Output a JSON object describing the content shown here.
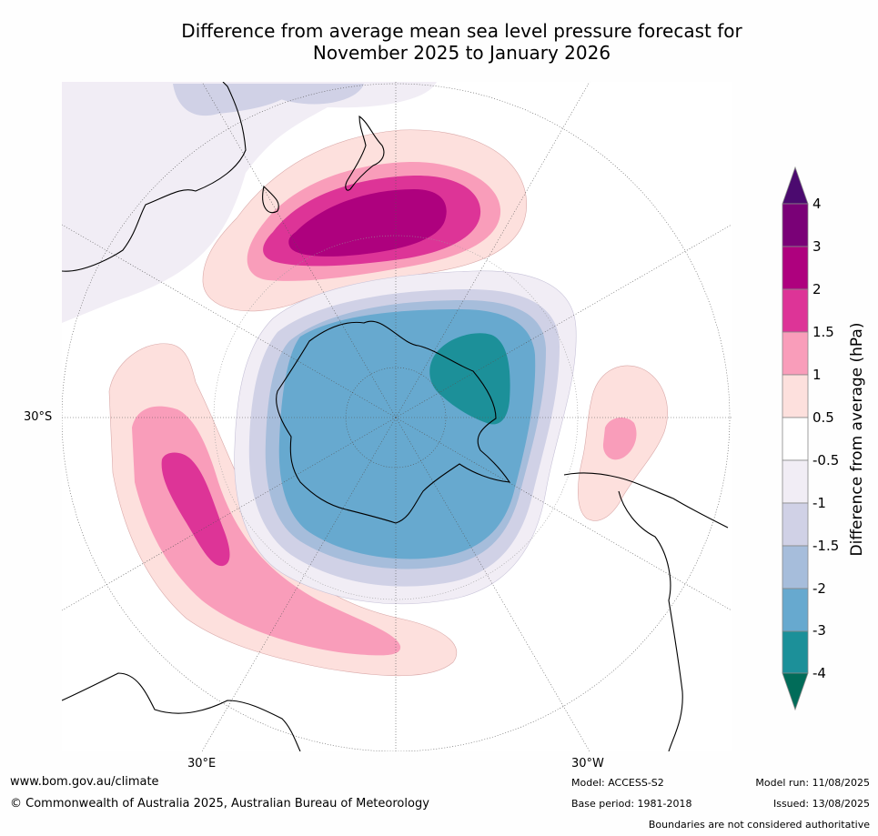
{
  "title": {
    "line1": "Difference from average mean sea level pressure forecast for",
    "line2": "November 2025 to January 2026"
  },
  "colorbar": {
    "label": "Difference from average (hPa)",
    "ticks": [
      "4",
      "3",
      "2",
      "1.5",
      "1",
      "0.5",
      "-0.5",
      "-1",
      "-1.5",
      "-2",
      "-3",
      "-4"
    ],
    "colors": {
      "above_4": "#4b0a6f",
      "3_to_4": "#7a0177",
      "2_to_3": "#ae017e",
      "1.5_to_2": "#dd3497",
      "1_to_1.5": "#f99dba",
      "0.5_to_1": "#fde0dd",
      "-0.5_to_0.5": "#ffffff",
      "-1_to_-0.5": "#f1edf5",
      "-1.5_to_-1": "#d0d1e6",
      "-2_to_-1.5": "#a6bddb",
      "-3_to_-2": "#67a9cf",
      "-4_to_-3": "#1c9099",
      "below_-4": "#016c59"
    }
  },
  "map_labels": {
    "lat_30s": "30°S",
    "lon_30e": "30°E",
    "lon_30w": "30°W"
  },
  "footer": {
    "url": "www.bom.gov.au/climate",
    "copyright": "© Commonwealth of Australia 2025, Australian Bureau of Meteorology",
    "model": "Model: ACCESS-S2",
    "base_period": "Base period: 1981-2018",
    "model_run": "Model run: 11/08/2025",
    "issued": "Issued: 13/08/2025",
    "disclaimer": "Boundaries are not considered authoritative"
  }
}
